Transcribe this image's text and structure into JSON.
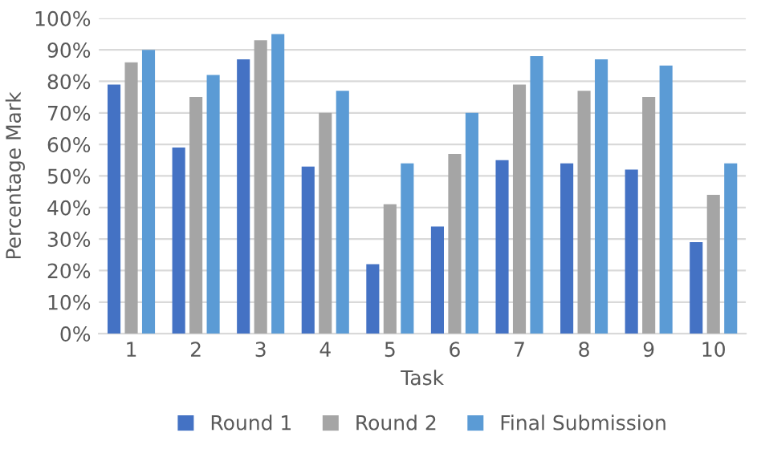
{
  "chart_data": {
    "type": "bar",
    "xlabel": "Task",
    "ylabel": "Percentage Mark",
    "categories": [
      "1",
      "2",
      "3",
      "4",
      "5",
      "6",
      "7",
      "8",
      "9",
      "10"
    ],
    "series": [
      {
        "name": "Round 1",
        "color": "#4472c4",
        "values": [
          79,
          59,
          87,
          53,
          22,
          34,
          55,
          54,
          52,
          29
        ]
      },
      {
        "name": "Round 2",
        "color": "#a5a5a5",
        "values": [
          86,
          75,
          93,
          70,
          41,
          57,
          79,
          77,
          75,
          44
        ]
      },
      {
        "name": "Final Submission",
        "color": "#5b9bd5",
        "values": [
          90,
          82,
          95,
          77,
          54,
          70,
          88,
          87,
          85,
          54
        ]
      }
    ],
    "ylim": [
      0,
      100
    ],
    "yticks": [
      {
        "value": 0,
        "label": "0%"
      },
      {
        "value": 10,
        "label": "10%"
      },
      {
        "value": 20,
        "label": "20%"
      },
      {
        "value": 30,
        "label": "30%"
      },
      {
        "value": 40,
        "label": "40%"
      },
      {
        "value": 50,
        "label": "50%"
      },
      {
        "value": 60,
        "label": "60%"
      },
      {
        "value": 70,
        "label": "70%"
      },
      {
        "value": 80,
        "label": "80%"
      },
      {
        "value": 90,
        "label": "90%"
      },
      {
        "value": 100,
        "label": "100%"
      }
    ],
    "grid": "y",
    "legend": "bottom"
  }
}
